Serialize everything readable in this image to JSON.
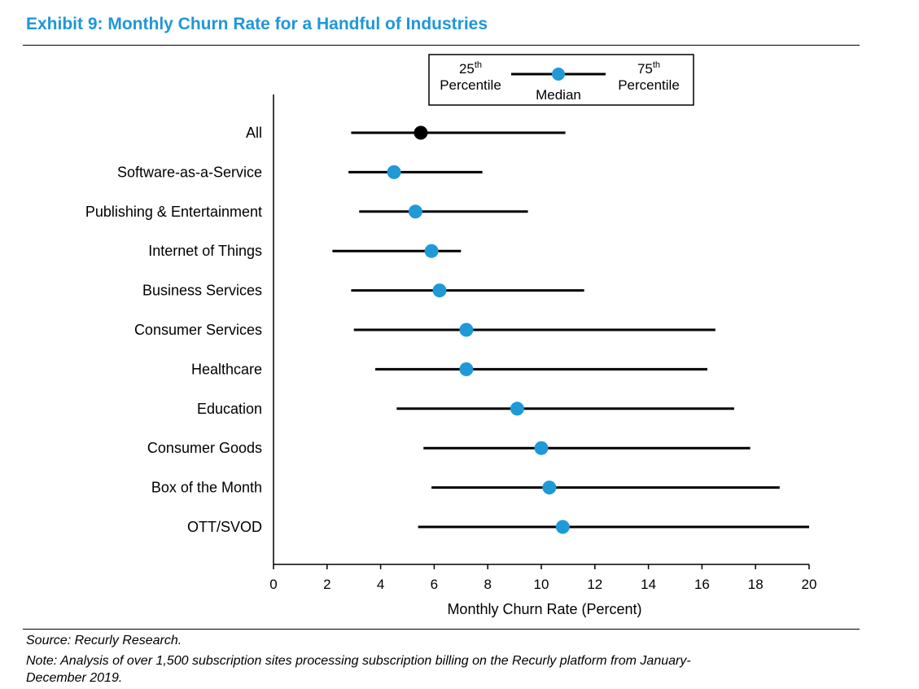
{
  "header": {
    "title": "Exhibit 9: Monthly Churn Rate for a Handful of Industries"
  },
  "legend": {
    "left_label_line1": "25",
    "left_label_sup": "th",
    "left_label_line2": "Percentile",
    "center_label": "Median",
    "right_label_line1": "75",
    "right_label_sup": "th",
    "right_label_line2": "Percentile"
  },
  "chart_data": {
    "type": "range-dot",
    "title": "Exhibit 9: Monthly Churn Rate for a Handful of Industries",
    "xlabel": "Monthly Churn Rate (Percent)",
    "ylabel": "",
    "xlim": [
      0,
      20
    ],
    "xticks": [
      0,
      2,
      4,
      6,
      8,
      10,
      12,
      14,
      16,
      18,
      20
    ],
    "grid": false,
    "colors": {
      "median": "#1f9ad6",
      "all_median": "#000000",
      "range": "#000000"
    },
    "categories": [
      "All",
      "Software-as-a-Service",
      "Publishing & Entertainment",
      "Internet of Things",
      "Business Services",
      "Consumer Services",
      "Healthcare",
      "Education",
      "Consumer Goods",
      "Box of the Month",
      "OTT/SVOD"
    ],
    "p25": [
      2.9,
      2.8,
      3.2,
      2.2,
      2.9,
      3.0,
      3.8,
      4.6,
      5.6,
      5.9,
      5.4
    ],
    "median": [
      5.5,
      4.5,
      5.3,
      5.9,
      6.2,
      7.2,
      7.2,
      9.1,
      10.0,
      10.3,
      10.8
    ],
    "p75": [
      10.9,
      7.8,
      9.5,
      7.0,
      11.6,
      16.5,
      16.2,
      17.2,
      17.8,
      18.9,
      20.0
    ]
  },
  "footer": {
    "source": "Source: Recurly Research.",
    "note_line1": "Note: Analysis of over 1,500 subscription sites processing subscription billing on the Recurly platform from January-",
    "note_line2": "December 2019."
  }
}
